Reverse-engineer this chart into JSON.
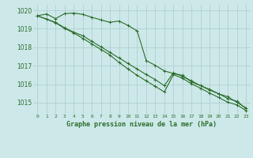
{
  "x": [
    0,
    1,
    2,
    3,
    4,
    5,
    6,
    7,
    8,
    9,
    10,
    11,
    12,
    13,
    14,
    15,
    16,
    17,
    18,
    19,
    20,
    21,
    22,
    23
  ],
  "line1": [
    1019.7,
    1019.8,
    1019.55,
    1019.82,
    1019.85,
    1019.78,
    1019.62,
    1019.48,
    1019.35,
    1019.42,
    1019.18,
    1018.88,
    1017.28,
    1017.02,
    1016.72,
    1016.58,
    1016.48,
    1016.12,
    1015.92,
    1015.72,
    1015.48,
    1015.32,
    1015.02,
    1014.72
  ],
  "line2": [
    1019.7,
    1019.52,
    1019.35,
    1019.05,
    1018.82,
    1018.62,
    1018.32,
    1018.02,
    1017.72,
    1017.42,
    1017.12,
    1016.82,
    1016.52,
    1016.25,
    1015.92,
    1016.62,
    1016.42,
    1016.18,
    1015.92,
    1015.68,
    1015.48,
    1015.22,
    1015.08,
    1014.68
  ],
  "line3": [
    1019.7,
    1019.52,
    1019.32,
    1019.02,
    1018.78,
    1018.48,
    1018.18,
    1017.88,
    1017.58,
    1017.18,
    1016.82,
    1016.48,
    1016.18,
    1015.88,
    1015.58,
    1016.52,
    1016.32,
    1016.02,
    1015.78,
    1015.52,
    1015.28,
    1015.02,
    1014.88,
    1014.58
  ],
  "bg_color": "#cce8e8",
  "grid_color": "#aacccc",
  "line_color": "#2d6e2d",
  "ylabel_values": [
    1015,
    1016,
    1017,
    1018,
    1019,
    1020
  ],
  "xlabel_values": [
    0,
    1,
    2,
    3,
    4,
    5,
    6,
    7,
    8,
    9,
    10,
    11,
    12,
    13,
    14,
    15,
    16,
    17,
    18,
    19,
    20,
    21,
    22,
    23
  ],
  "xlabel": "Graphe pression niveau de la mer (hPa)",
  "ylim": [
    1014.4,
    1020.3
  ],
  "xlim": [
    -0.5,
    23.5
  ],
  "figsize": [
    3.2,
    2.0
  ],
  "dpi": 100
}
